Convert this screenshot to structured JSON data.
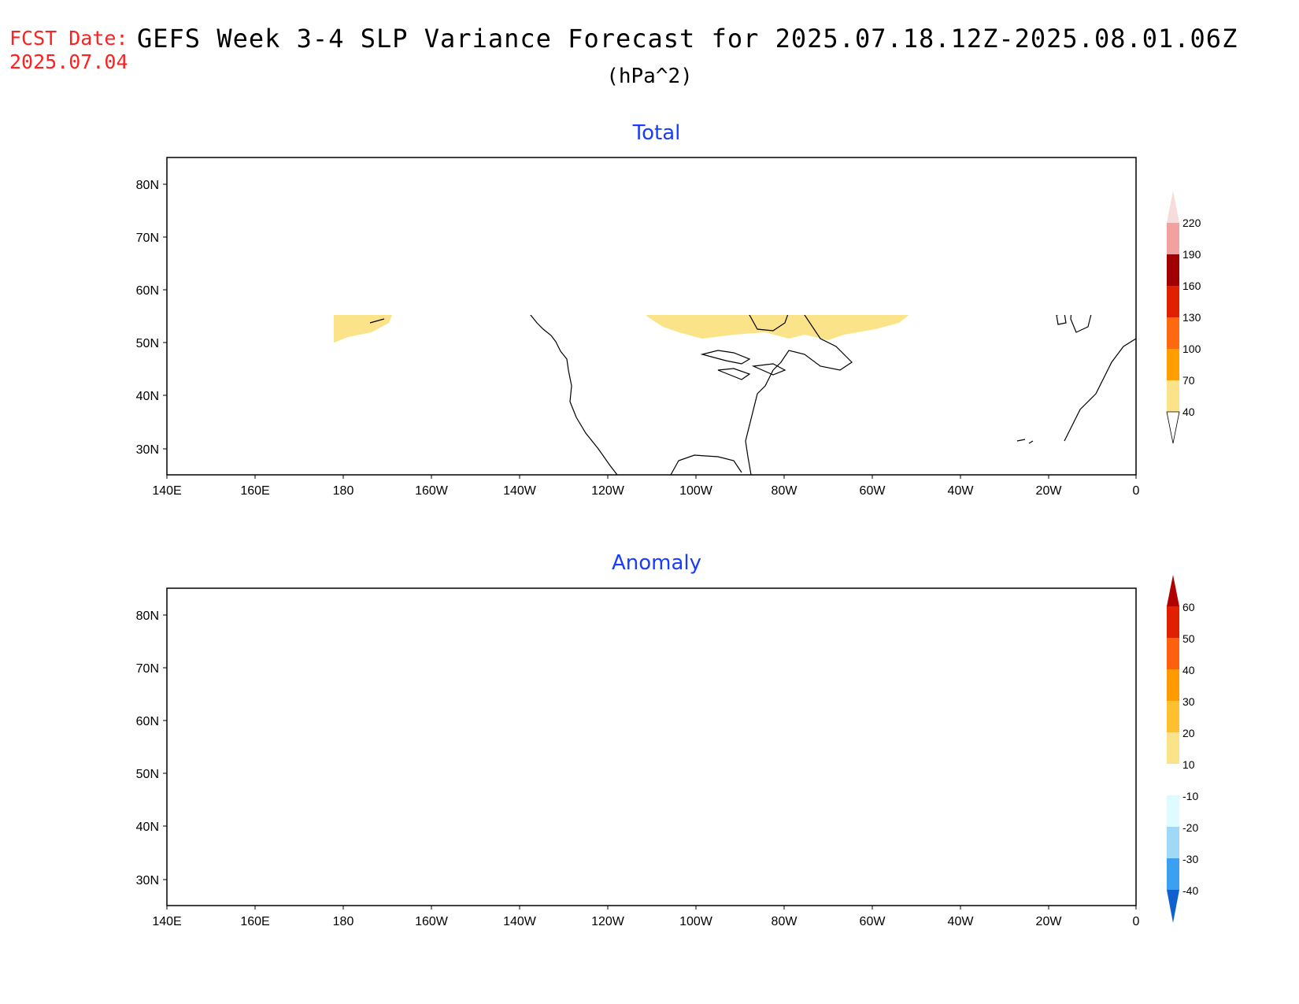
{
  "header": {
    "fcst_label": "FCST Date:",
    "fcst_date": "2025.07.04",
    "title": "GEFS Week 3-4 SLP Variance Forecast for 2025.07.18.12Z-2025.08.01.06Z",
    "units": "(hPa^2)"
  },
  "colors": {
    "title_red": "#ff2020",
    "panel_title_blue": "#1a3cff",
    "total_shade_40": "#fbe38a",
    "anomaly_shade_10": "#fdf3a8",
    "anomaly_neg_10": "#e0fbff"
  },
  "map": {
    "projection": "cylindrical equidistant",
    "lon_range": [
      "140E",
      "0"
    ],
    "lat_range": [
      25,
      85
    ],
    "x_tick_labels": [
      "140E",
      "160E",
      "180",
      "160W",
      "140W",
      "120W",
      "100W",
      "80W",
      "60W",
      "40W",
      "20W",
      "0"
    ],
    "y_tick_labels": [
      "80N",
      "70N",
      "60N",
      "50N",
      "40N",
      "30N"
    ]
  },
  "panels": [
    {
      "title": "Total",
      "colorbar": {
        "labels": [
          "220",
          "190",
          "160",
          "130",
          "100",
          "70",
          "40"
        ],
        "colors": [
          "#f7dcdc",
          "#f2a0a0",
          "#a00000",
          "#e02000",
          "#ff6a10",
          "#ffa000",
          "#fbe38a"
        ],
        "extend": "both"
      }
    },
    {
      "title": "Anomaly",
      "colorbar": {
        "labels": [
          "60",
          "50",
          "40",
          "30",
          "20",
          "10",
          "-10",
          "-20",
          "-30",
          "-40"
        ],
        "colors": [
          "#b00000",
          "#e02000",
          "#ff6010",
          "#ff9a00",
          "#ffc030",
          "#fbe38a",
          "#fdf8c0",
          "#ffffff",
          "#e0fbff",
          "#a0d8f8",
          "#3ca0f0",
          "#1060d0"
        ],
        "extend": "both"
      }
    }
  ]
}
